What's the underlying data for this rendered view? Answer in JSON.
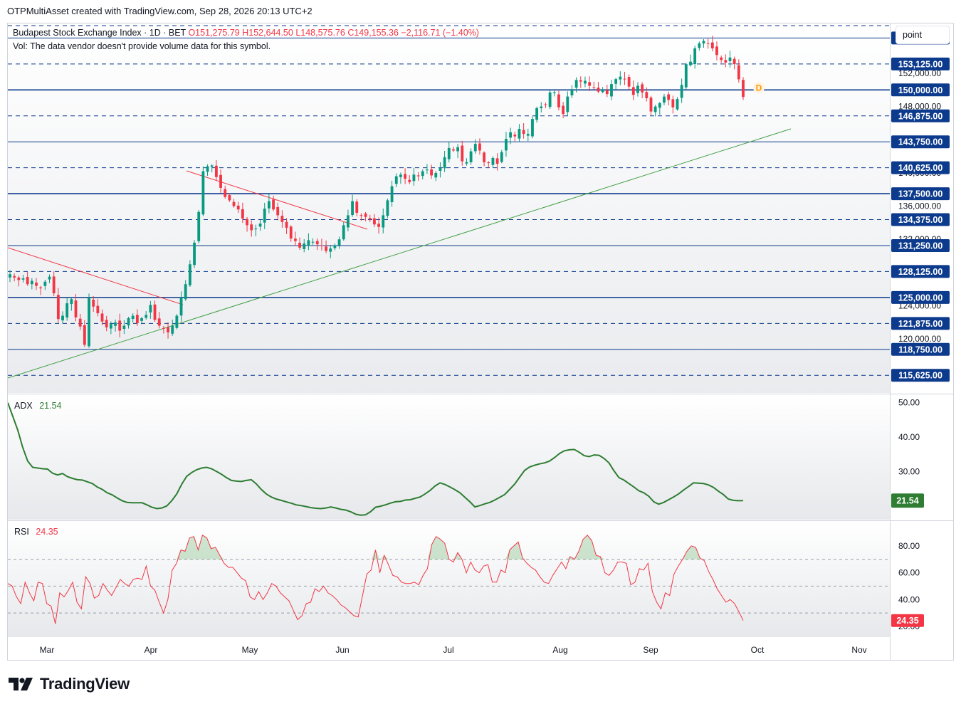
{
  "header": {
    "attribution": "OTPMultiAsset created with TradingView.com, Sep 28, 2026 20:13 UTC+2"
  },
  "legend": {
    "symbol": "Budapest Stock Exchange Index · 1D · BET",
    "open": "O151,275.79",
    "high": "H152,644.50",
    "low": "L148,575.76",
    "close": "C149,155.36",
    "change": "−2,116.71 (−1.40%)",
    "volume_note": "Vol: The data vendor doesn't provide volume data for this symbol."
  },
  "scale_button": "point",
  "dividend_marker": "D",
  "brand": "TradingView",
  "colors": {
    "up": "#089981",
    "down": "#f23645",
    "level": "#0c3a8c",
    "adx": "#2e7d32",
    "rsi": "#f23645",
    "trend_up": "#43a047",
    "trend_down": "#f23645"
  },
  "chart_data": [
    {
      "type": "candlestick",
      "title": "Budapest Stock Exchange Index · 1D · BET",
      "x_labels": [
        "Mar",
        "Apr",
        "May",
        "Jun",
        "Jul",
        "Aug",
        "Sep",
        "Oct",
        "Nov"
      ],
      "ylim": [
        113500,
        158000
      ],
      "y_ticks": [
        "120,000.00",
        "124,000.00",
        "132,000.00",
        "136,000.00",
        "140,000.00",
        "148,000.00",
        "152,000.00"
      ],
      "levels_solid": [
        {
          "value": 156250,
          "label": "156,250.00"
        },
        {
          "value": 150000,
          "label": "150,000.00"
        },
        {
          "value": 143750,
          "label": "143,750.00"
        },
        {
          "value": 137500,
          "label": "137,500.00"
        },
        {
          "value": 131250,
          "label": "131,250.00"
        },
        {
          "value": 125000,
          "label": "125,000.00"
        },
        {
          "value": 118750,
          "label": "118,750.00"
        }
      ],
      "levels_dashed": [
        {
          "value": 153125,
          "label": "153,125.00"
        },
        {
          "value": 146875,
          "label": "146,875.00"
        },
        {
          "value": 140625,
          "label": "140,625.00"
        },
        {
          "value": 134375,
          "label": "134,375.00"
        },
        {
          "value": 128125,
          "label": "128,125.00"
        },
        {
          "value": 121875,
          "label": "121,875.00"
        },
        {
          "value": 115625,
          "label": "115,625.00"
        }
      ],
      "ohlc_approx": {
        "note_free": true
      },
      "close_series": [
        127800,
        127400,
        127100,
        127300,
        126600,
        127000,
        126400,
        126100,
        126900,
        127500,
        125500,
        122400,
        122800,
        124300,
        124800,
        122600,
        121500,
        119300,
        125000,
        123900,
        123100,
        122100,
        121400,
        121800,
        122000,
        121000,
        121600,
        122500,
        122800,
        121900,
        122500,
        122900,
        124100,
        122300,
        121600,
        121300,
        120800,
        121600,
        122800,
        125000,
        126600,
        129000,
        131600,
        135300,
        140200,
        140800,
        140900,
        139500,
        138200,
        137100,
        136700,
        136000,
        135600,
        134500,
        133700,
        133100,
        133300,
        133900,
        135700,
        136600,
        135600,
        134900,
        134100,
        133400,
        132100,
        131800,
        131000,
        131500,
        131900,
        131700,
        131400,
        131200,
        130600,
        130900,
        131300,
        132000,
        133700,
        134900,
        136600,
        135200,
        134900,
        134700,
        134400,
        133800,
        133500,
        134900,
        136700,
        138400,
        139600,
        139800,
        139300,
        138900,
        139800,
        139600,
        140200,
        140400,
        139700,
        140000,
        140600,
        141900,
        143000,
        142700,
        143100,
        141400,
        141300,
        142600,
        143500,
        142700,
        141300,
        141200,
        141800,
        141100,
        142500,
        144100,
        144900,
        144400,
        145300,
        144700,
        144700,
        146500,
        147800,
        148000,
        148200,
        149700,
        149700,
        147900,
        147100,
        149200,
        150100,
        151200,
        151000,
        151100,
        150500,
        150300,
        149800,
        150000,
        149500,
        150700,
        151300,
        151600,
        151300,
        150400,
        149400,
        150500,
        149700,
        149000,
        147400,
        148000,
        148400,
        149200,
        148800,
        147900,
        148900,
        150600,
        153100,
        153400,
        155000,
        155600,
        155900,
        155600,
        155000,
        154200,
        153600,
        153300,
        153900,
        153100,
        151275,
        149155
      ],
      "trendlines": [
        {
          "name": "rising support",
          "from": [
            "late Feb",
            115000
          ],
          "to": [
            "early Oct",
            146800
          ]
        },
        {
          "name": "falling resistance 1",
          "from": [
            "late Feb",
            131700
          ],
          "to": [
            "early Apr",
            124800
          ]
        },
        {
          "name": "falling resistance 2",
          "from": [
            "mid Apr",
            141100
          ],
          "to": [
            "mid Jun",
            133800
          ]
        }
      ]
    },
    {
      "type": "line",
      "title": "ADX",
      "series": [
        {
          "name": "ADX",
          "last": "21.54"
        }
      ],
      "y_ticks": [
        "50.00",
        "40.00",
        "30.00"
      ],
      "ylim": [
        16,
        52
      ],
      "values": [
        50,
        46,
        42,
        37,
        33,
        31.2,
        31,
        30.8,
        30.7,
        29.5,
        29,
        29.4,
        28.5,
        28,
        27.6,
        27.5,
        27,
        26.5,
        25.5,
        24.8,
        23.8,
        23.2,
        22.3,
        21.5,
        21,
        20.9,
        20.9,
        20.9,
        20.3,
        19.6,
        19.2,
        19.4,
        20,
        21.5,
        23.5,
        26.3,
        28.6,
        29.7,
        30.5,
        31,
        31.2,
        30.8,
        30,
        29.2,
        28.2,
        27.4,
        27.2,
        27.1,
        27.4,
        27.6,
        26.4,
        24.8,
        23.5,
        22.6,
        22,
        21.6,
        21.2,
        20.8,
        20.3,
        20.1,
        19.8,
        19.5,
        19.3,
        19.2,
        19.4,
        19.7,
        19.4,
        19,
        18.8,
        18.3,
        17.6,
        17.3,
        17.4,
        18.3,
        19.6,
        19.9,
        20.3,
        20.8,
        21.2,
        21.3,
        21.7,
        21.8,
        22.2,
        22.6,
        23.5,
        24.5,
        25.8,
        26.7,
        26.2,
        25.5,
        24.7,
        23.8,
        22.5,
        21.2,
        19.7,
        20.1,
        20.6,
        21,
        21.7,
        22.5,
        23.3,
        24.8,
        26.3,
        28.3,
        30.3,
        31.3,
        31.8,
        32.2,
        32.5,
        33,
        34,
        35.2,
        36,
        36.3,
        36.4,
        35.6,
        34.6,
        34.3,
        34.8,
        34.7,
        33.8,
        32.5,
        30.2,
        28.2,
        27.5,
        26.5,
        25.5,
        24.4,
        23.8,
        22.8,
        21.2,
        20.5,
        21,
        21.8,
        22.6,
        23.5,
        24.6,
        25.6,
        26.7,
        26.6,
        26.5,
        26.1,
        25.4,
        24.3,
        23.3,
        22,
        21.6,
        21.5,
        21.54
      ]
    },
    {
      "type": "line",
      "title": "RSI",
      "series": [
        {
          "name": "RSI",
          "last": "24.35"
        }
      ],
      "y_ticks": [
        "80.00",
        "60.00",
        "40.00",
        "20.00"
      ],
      "ylim": [
        12,
        98
      ],
      "bands": [
        70,
        50,
        30
      ],
      "values": [
        52,
        50,
        42,
        37,
        53,
        45,
        39,
        53,
        52,
        37,
        35,
        22,
        45,
        42,
        47,
        53,
        38,
        33,
        57,
        52,
        41,
        43,
        52,
        47,
        43,
        49,
        55,
        52,
        50,
        55,
        56,
        55,
        65,
        50,
        47,
        38,
        30,
        40,
        62,
        67,
        77,
        76,
        86,
        87,
        77,
        88,
        86,
        78,
        79,
        73,
        67,
        64,
        64,
        60,
        56,
        54,
        42,
        40,
        46,
        40,
        45,
        52,
        50,
        45,
        42,
        39,
        32,
        25,
        28,
        37,
        38,
        48,
        46,
        50,
        45,
        43,
        40,
        36,
        34,
        31,
        28,
        27,
        43,
        59,
        62,
        77,
        60,
        73,
        66,
        58,
        57,
        53,
        52,
        52,
        53,
        51,
        58,
        63,
        81,
        87,
        85,
        82,
        70,
        68,
        75,
        70,
        60,
        68,
        62,
        60,
        65,
        66,
        53,
        53,
        62,
        60,
        77,
        80,
        83,
        71,
        67,
        64,
        62,
        57,
        53,
        52,
        58,
        63,
        68,
        63,
        72,
        70,
        76,
        85,
        88,
        84,
        73,
        72,
        60,
        58,
        62,
        68,
        68,
        67,
        51,
        53,
        63,
        62,
        67,
        46,
        38,
        33,
        45,
        43,
        59,
        65,
        70,
        76,
        80,
        79,
        71,
        69,
        61,
        55,
        48,
        43,
        38,
        40,
        37,
        31,
        24.35
      ]
    }
  ]
}
